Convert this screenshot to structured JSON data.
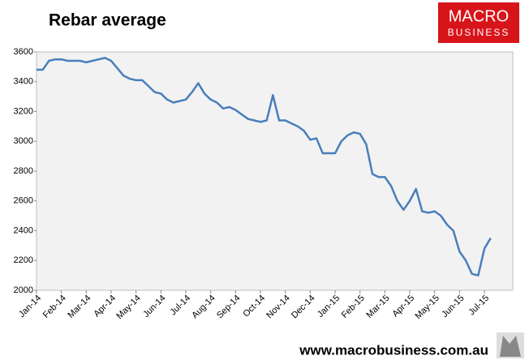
{
  "chart_data": {
    "type": "line",
    "title": "Rebar average",
    "logo": [
      "MACRO",
      "BUSINESS"
    ],
    "source": "www.macrobusiness.com.au",
    "categories": [
      "Jan-14",
      null,
      null,
      null,
      "Feb-14",
      null,
      null,
      null,
      "Mar-14",
      null,
      null,
      null,
      "Apr-14",
      null,
      null,
      null,
      "May-14",
      null,
      null,
      null,
      "Jun-14",
      null,
      null,
      null,
      "Jul-14",
      null,
      null,
      null,
      "Aug-14",
      null,
      null,
      null,
      "Sep-14",
      null,
      null,
      null,
      "Oct-14",
      null,
      null,
      null,
      "Nov-14",
      null,
      null,
      null,
      "Dec-14",
      null,
      null,
      null,
      "Jan-15",
      null,
      null,
      null,
      "Feb-15",
      null,
      null,
      null,
      "Mar-15",
      null,
      null,
      null,
      "Apr-15",
      null,
      null,
      null,
      "May-15",
      null,
      null,
      null,
      "Jun-15",
      null,
      null,
      null,
      "Jul-15",
      null
    ],
    "series": [
      {
        "name": "Rebar average",
        "color": "#4a7ebb",
        "values": [
          3480,
          3480,
          3540,
          3550,
          3550,
          3540,
          3540,
          3540,
          3530,
          3540,
          3550,
          3560,
          3540,
          3490,
          3440,
          3420,
          3410,
          3410,
          3370,
          3330,
          3320,
          3280,
          3260,
          3270,
          3280,
          3330,
          3390,
          3320,
          3280,
          3260,
          3220,
          3230,
          3210,
          3180,
          3150,
          3140,
          3130,
          3140,
          3310,
          3140,
          3140,
          3120,
          3100,
          3070,
          3010,
          3020,
          2920,
          2920,
          2920,
          3000,
          3040,
          3060,
          3050,
          2980,
          2780,
          2760,
          2760,
          2700,
          2600,
          2540,
          2600,
          2680,
          2530,
          2520,
          2530,
          2500,
          2440,
          2400,
          2260,
          2200,
          2110,
          2100,
          2280,
          2350
        ]
      }
    ],
    "ylim": [
      2000,
      3600
    ],
    "yticks": [
      2000,
      2200,
      2400,
      2600,
      2800,
      3000,
      3200,
      3400,
      3600
    ]
  }
}
